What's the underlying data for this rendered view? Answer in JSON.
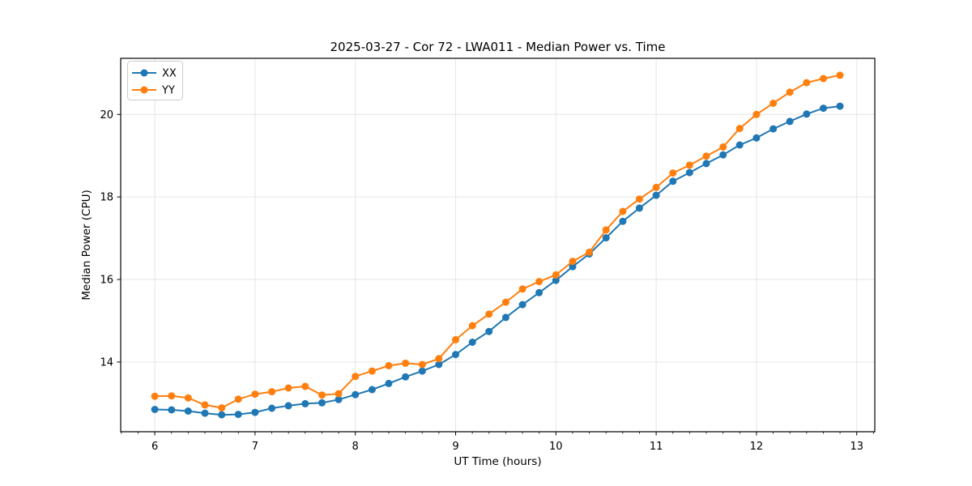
{
  "chart_data": {
    "type": "line",
    "title": "2025-03-27 - Cor 72 - LWA011 - Median Power vs. Time",
    "xlabel": "UT Time (hours)",
    "ylabel": "Median Power (CPU)",
    "xlim": [
      5.66,
      13.18
    ],
    "ylim": [
      12.31,
      21.36
    ],
    "xticks": [
      6,
      7,
      8,
      9,
      10,
      11,
      12,
      13
    ],
    "yticks": [
      14,
      16,
      18,
      20
    ],
    "x_minor_step_per_hour": 6,
    "grid": true,
    "legend_position": "upper left",
    "colors": {
      "xx": "#1f77b4",
      "yy": "#ff7f0e",
      "grid": "#e6e6e6",
      "spine": "#000000"
    },
    "x": [
      6.0,
      6.167,
      6.333,
      6.5,
      6.667,
      6.833,
      7.0,
      7.167,
      7.333,
      7.5,
      7.667,
      7.833,
      8.0,
      8.167,
      8.333,
      8.5,
      8.667,
      8.833,
      9.0,
      9.167,
      9.333,
      9.5,
      9.667,
      9.833,
      10.0,
      10.167,
      10.333,
      10.5,
      10.667,
      10.833,
      11.0,
      11.167,
      11.333,
      11.5,
      11.667,
      11.833,
      12.0,
      12.167,
      12.333,
      12.5,
      12.667,
      12.833
    ],
    "series": [
      {
        "name": "XX",
        "color": "#1f77b4",
        "values": [
          12.85,
          12.84,
          12.81,
          12.76,
          12.72,
          12.73,
          12.78,
          12.88,
          12.94,
          12.99,
          13.01,
          13.09,
          13.21,
          13.33,
          13.48,
          13.64,
          13.78,
          13.94,
          14.18,
          14.48,
          14.74,
          15.08,
          15.39,
          15.68,
          15.98,
          16.31,
          16.62,
          17.01,
          17.41,
          17.73,
          18.04,
          18.38,
          18.59,
          18.81,
          19.02,
          19.26,
          19.43,
          19.65,
          19.83,
          20.01,
          20.15,
          20.2
        ]
      },
      {
        "name": "YY",
        "color": "#ff7f0e",
        "values": [
          13.17,
          13.18,
          13.13,
          12.96,
          12.89,
          13.1,
          13.22,
          13.28,
          13.37,
          13.41,
          13.2,
          13.23,
          13.65,
          13.78,
          13.91,
          13.97,
          13.94,
          14.08,
          14.54,
          14.88,
          15.16,
          15.45,
          15.77,
          15.95,
          16.11,
          16.44,
          16.66,
          17.2,
          17.65,
          17.95,
          18.23,
          18.58,
          18.77,
          18.99,
          19.21,
          19.66,
          20.0,
          20.27,
          20.54,
          20.77,
          20.87,
          20.95
        ]
      }
    ]
  }
}
